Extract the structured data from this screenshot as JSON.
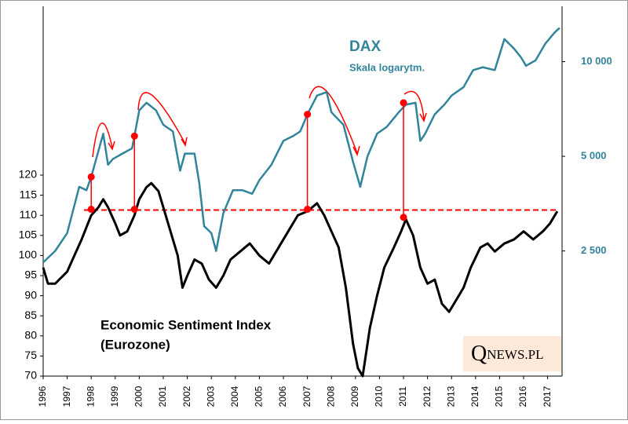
{
  "chart_data": {
    "type": "line",
    "series": [
      {
        "name": "DAX",
        "color": "#31849b",
        "axis": "y2",
        "x": [
          1996.0,
          1996.5,
          1997.0,
          1997.5,
          1997.8,
          1998.0,
          1998.5,
          1998.7,
          1998.9,
          1999.3,
          1999.7,
          2000.0,
          2000.3,
          2000.7,
          2001.0,
          2001.4,
          2001.7,
          2001.9,
          2002.3,
          2002.5,
          2002.7,
          2003.0,
          2003.2,
          2003.5,
          2003.9,
          2004.3,
          2004.7,
          2005.0,
          2005.5,
          2006.0,
          2006.4,
          2006.7,
          2007.0,
          2007.4,
          2007.8,
          2008.0,
          2008.5,
          2008.9,
          2009.2,
          2009.5,
          2009.9,
          2010.3,
          2010.8,
          2011.1,
          2011.5,
          2011.7,
          2011.9,
          2012.3,
          2012.7,
          2013.0,
          2013.5,
          2013.9,
          2014.3,
          2014.8,
          2015.2,
          2015.6,
          2015.9,
          2016.1,
          2016.5,
          2016.9,
          2017.3,
          2017.5
        ],
        "values": [
          2300,
          2500,
          2850,
          4000,
          3900,
          4300,
          5900,
          4700,
          4900,
          5100,
          5300,
          7000,
          7400,
          7000,
          6300,
          6000,
          4500,
          5100,
          5100,
          4100,
          3000,
          2850,
          2500,
          3300,
          3900,
          3900,
          3800,
          4200,
          4700,
          5600,
          5800,
          6000,
          6800,
          7800,
          8000,
          6900,
          6300,
          4800,
          4000,
          5000,
          5900,
          6200,
          6900,
          7300,
          7400,
          5600,
          5900,
          6800,
          7300,
          7800,
          8300,
          9400,
          9600,
          9400,
          11800,
          11000,
          10300,
          9700,
          10100,
          11400,
          12400,
          12800
        ]
      },
      {
        "name": "Economic Sentiment Index",
        "color": "#000000",
        "x": [
          1996.0,
          1996.2,
          1996.5,
          1997.0,
          1997.3,
          1997.6,
          1998.0,
          1998.3,
          1998.5,
          1998.7,
          1999.0,
          1999.2,
          1999.5,
          1999.8,
          2000.0,
          2000.3,
          2000.5,
          2000.8,
          2001.0,
          2001.3,
          2001.6,
          2001.8,
          2002.0,
          2002.3,
          2002.6,
          2002.9,
          2003.2,
          2003.5,
          2003.8,
          2004.2,
          2004.6,
          2005.0,
          2005.4,
          2005.8,
          2006.2,
          2006.6,
          2007.0,
          2007.4,
          2007.7,
          2008.0,
          2008.3,
          2008.6,
          2008.9,
          2009.1,
          2009.3,
          2009.6,
          2009.9,
          2010.2,
          2010.6,
          2010.9,
          2011.1,
          2011.4,
          2011.7,
          2012.0,
          2012.3,
          2012.6,
          2012.9,
          2013.2,
          2013.5,
          2013.8,
          2014.2,
          2014.5,
          2014.8,
          2015.2,
          2015.6,
          2016.0,
          2016.4,
          2016.8,
          2017.1,
          2017.4
        ],
        "values": [
          97,
          93,
          93,
          96,
          100,
          104,
          110,
          112,
          114,
          112,
          108,
          105,
          106,
          110,
          114,
          117,
          118,
          116,
          112,
          106,
          100,
          92,
          95,
          99,
          98,
          94,
          92,
          95,
          99,
          101,
          103,
          100,
          98,
          102,
          106,
          110,
          111,
          113,
          110,
          106,
          102,
          92,
          78,
          72,
          70,
          82,
          90,
          97,
          102,
          106,
          109,
          105,
          97,
          93,
          94,
          88,
          86,
          89,
          92,
          97,
          102,
          103,
          101,
          103,
          104,
          106,
          104,
          106,
          108,
          111
        ]
      }
    ],
    "subtitle": "Skala logarytm.",
    "annotation": "(Eurozone)",
    "logo": {
      "q": "Q",
      "rest": "NEWS.PL"
    },
    "reference_line": 111.3,
    "markers": [
      {
        "x": 1998.0,
        "y": 111.5,
        "y2": 4300
      },
      {
        "x": 1999.8,
        "y": 111.5,
        "y2": 5800
      },
      {
        "x": 2007.0,
        "y": 111.5,
        "y2": 6800
      },
      {
        "x": 2011.0,
        "y": 109.5,
        "y2": 7400
      }
    ],
    "xlim": [
      1996,
      2017.6
    ],
    "xticks": [
      1996,
      1997,
      1998,
      1999,
      2000,
      2001,
      2002,
      2003,
      2004,
      2005,
      2006,
      2007,
      2008,
      2009,
      2010,
      2011,
      2012,
      2013,
      2014,
      2015,
      2016,
      2017
    ],
    "ylim": [
      70,
      162
    ],
    "yticks": [
      70,
      75,
      80,
      85,
      90,
      95,
      100,
      105,
      110,
      115,
      120
    ],
    "y2lim": [
      1000,
      15000
    ],
    "y2log": true,
    "y2ticks": [
      {
        "value": 2500,
        "label": "2 500"
      },
      {
        "value": 5000,
        "label": "5 000"
      },
      {
        "value": 10000,
        "label": "10 000"
      }
    ],
    "marker_color": "#ff0000"
  }
}
